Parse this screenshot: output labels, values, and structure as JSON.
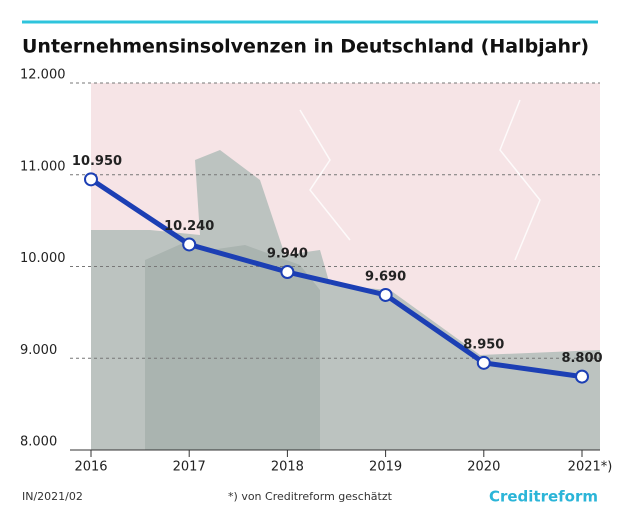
{
  "chart_data": {
    "type": "line",
    "title": "Unternehmensinsolvenzen in Deutschland (Halbjahr)",
    "categories": [
      "2016",
      "2017",
      "2018",
      "2019",
      "2020",
      "2021*)"
    ],
    "values": [
      10950,
      10240,
      9940,
      9690,
      8950,
      8800
    ],
    "value_labels": [
      "10.950",
      "10.240",
      "9.940",
      "9.690",
      "8.950",
      "8.800"
    ],
    "color": "#1c3fb4",
    "ylim": [
      8000,
      12000
    ],
    "yticks": [
      {
        "value": 8000,
        "label": "8.000"
      },
      {
        "value": 9000,
        "label": "9.000"
      },
      {
        "value": 10000,
        "label": "10.000"
      },
      {
        "value": 11000,
        "label": "11.000"
      },
      {
        "value": 12000,
        "label": "12.000"
      }
    ],
    "grid": true,
    "source": "IN/2021/02",
    "note": "*) von Creditreform geschätzt",
    "logo": "Creditreform"
  }
}
